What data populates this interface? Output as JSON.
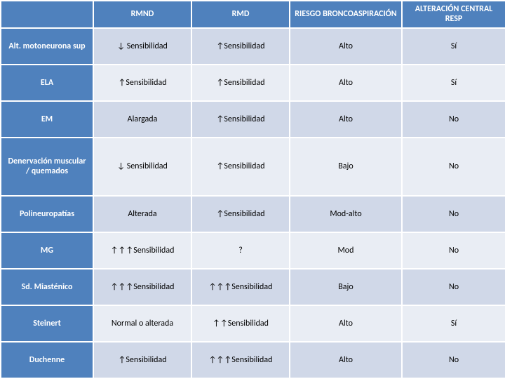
{
  "table": {
    "header_bg": "#4f81bd",
    "header_fg": "#ffffff",
    "band_colors": [
      "#d0d8e8",
      "#e9edf4"
    ],
    "columns": [
      {
        "label": ""
      },
      {
        "label": "RMND"
      },
      {
        "label": "RMD"
      },
      {
        "label": "RIESGO BRONCOASPIRACIÓN"
      },
      {
        "label": "ALTERACIÓN CENTRAL RESP"
      }
    ],
    "rows": [
      {
        "label": "Alt. motoneurona sup",
        "cells": [
          "↓ Sensibilidad",
          "↑Sensibilidad",
          "Alto",
          "Sí"
        ]
      },
      {
        "label": "ELA",
        "cells": [
          "↑Sensibilidad",
          "↑Sensibilidad",
          "Alto",
          "Sí"
        ]
      },
      {
        "label": "EM",
        "cells": [
          "Alargada",
          "↑Sensibilidad",
          "Alto",
          "No"
        ]
      },
      {
        "label": "Denervación muscular / quemados",
        "cells": [
          "↓ Sensibilidad",
          "↑Sensibilidad",
          "Bajo",
          "No"
        ]
      },
      {
        "label": "Polineuropatías",
        "cells": [
          "Alterada",
          "↑Sensibilidad",
          "Mod-alto",
          "No"
        ]
      },
      {
        "label": "MG",
        "cells": [
          "↑↑↑Sensibilidad",
          "?",
          "Mod",
          "No"
        ]
      },
      {
        "label": "Sd. Miasténico",
        "cells": [
          "↑↑↑Sensibilidad",
          "↑↑↑Sensibilidad",
          "Bajo",
          "No"
        ]
      },
      {
        "label": "Steinert",
        "cells": [
          "Normal o alterada",
          "↑↑Sensibilidad",
          "Alto",
          "Sí"
        ]
      },
      {
        "label": "Duchenne",
        "cells": [
          "↑Sensibilidad",
          "↑↑↑Sensibilidad",
          "Alto",
          "No"
        ]
      }
    ]
  }
}
